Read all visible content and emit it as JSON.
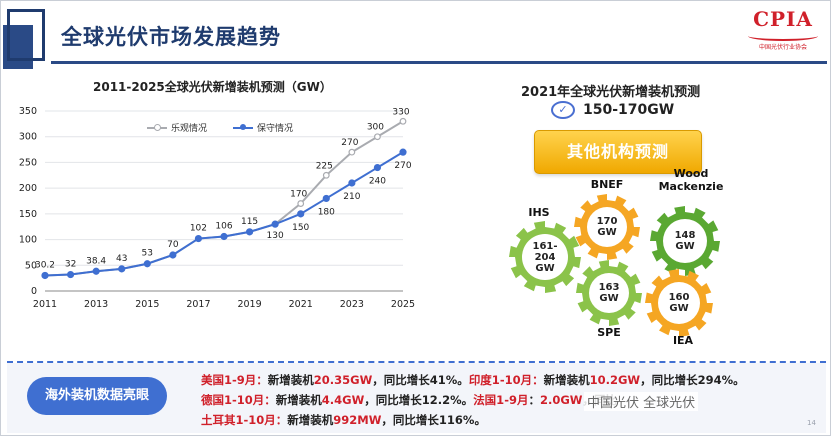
{
  "header": {
    "title": "全球光伏市场发展趋势",
    "logo_text": "CPIA",
    "logo_sub": "中国光伏行业协会"
  },
  "chart_title": "2011-2025全球光伏新增装机预测（GW）",
  "chart_data": {
    "type": "line",
    "title": "2011-2025全球光伏新增装机预测（GW）",
    "x": [
      2011,
      2012,
      2013,
      2014,
      2015,
      2016,
      2017,
      2018,
      2019,
      2020,
      2021,
      2022,
      2023,
      2024,
      2025
    ],
    "xticks": [
      "2011",
      "2013",
      "2015",
      "2017",
      "2019",
      "2021",
      "2023",
      "2025"
    ],
    "ylim": [
      0,
      350
    ],
    "yticks": [
      "0",
      "50",
      "100",
      "150",
      "200",
      "250",
      "300",
      "350"
    ],
    "grid": true,
    "legend_position": "top-left",
    "series": [
      {
        "name": "乐观情况",
        "color": "#a9abb0",
        "values": [
          30.2,
          32,
          38.4,
          43,
          53,
          70,
          102,
          106,
          115,
          130,
          170,
          225,
          270,
          300,
          330
        ],
        "labels": [
          "",
          "",
          "",
          "",
          "",
          "",
          "",
          "",
          "",
          "",
          "170",
          "225",
          "270",
          "300",
          "330"
        ]
      },
      {
        "name": "保守情况",
        "color": "#3f6fd1",
        "values": [
          30.2,
          32,
          38.4,
          43,
          53,
          70,
          102,
          106,
          115,
          130,
          150,
          180,
          210,
          240,
          270
        ],
        "labels": [
          "30.2",
          "32",
          "38.4",
          "43",
          "53",
          "70",
          "102",
          "106",
          "115",
          "130",
          "150",
          "180",
          "210",
          "240",
          "270"
        ]
      }
    ]
  },
  "right": {
    "title": "2021年全球光伏新增装机预测",
    "range": "150-170GW",
    "check_icon": "✓",
    "button": "其他机构预测",
    "gears": [
      {
        "org": "IHS",
        "value": "161-\n204\nGW",
        "color": "#8bc34a"
      },
      {
        "org": "BNEF",
        "value": "170\nGW",
        "color": "#f5a623"
      },
      {
        "org": "Wood\nMackenzie",
        "value": "148\nGW",
        "color": "#5aa832"
      },
      {
        "org": "SPE",
        "value": "163\nGW",
        "color": "#8bc34a"
      },
      {
        "org": "IEA",
        "value": "160\nGW",
        "color": "#f5a623"
      }
    ]
  },
  "bottom": {
    "badge": "海外装机数据亮眼",
    "lines": [
      [
        {
          "t": "美国1-9月：",
          "red": true
        },
        {
          "t": "新增装机",
          "red": false
        },
        {
          "t": "20.35GW",
          "red": true
        },
        {
          "t": "，同比增长41%。",
          "red": false
        },
        {
          "t": "印度1-10月：",
          "red": true
        },
        {
          "t": "新增装机",
          "red": false
        },
        {
          "t": "10.2GW",
          "red": true
        },
        {
          "t": "，同比增长294%。",
          "red": false
        }
      ],
      [
        {
          "t": "德国1-10月：",
          "red": true
        },
        {
          "t": "新增装机",
          "red": false
        },
        {
          "t": "4.4GW",
          "red": true
        },
        {
          "t": "，同比增长12.2%。",
          "red": false
        },
        {
          "t": "法国1-9月",
          "red": true
        },
        {
          "t": "：",
          "red": false
        },
        {
          "t": "2.0GW",
          "red": true
        },
        {
          "t": "，同比",
          "red": false
        }
      ],
      [
        {
          "t": "土耳其1-10月：",
          "red": true
        },
        {
          "t": "新增装机",
          "red": false
        },
        {
          "t": "992MW",
          "red": true
        },
        {
          "t": "，同比增长116%。",
          "red": false
        }
      ]
    ],
    "watermark": "中国光伏  全球光伏",
    "page": "14"
  }
}
